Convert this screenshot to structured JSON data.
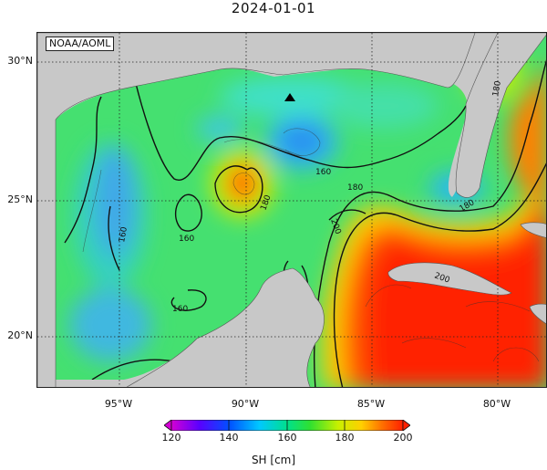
{
  "title": "2024-01-01",
  "credit": "NOAA/AOML",
  "lat_labels": [
    "30°N",
    "25°N",
    "20°N"
  ],
  "lon_labels": [
    "95°W",
    "90°W",
    "85°W",
    "80°W"
  ],
  "contour_labels": [
    "160",
    "160",
    "160",
    "160",
    "180",
    "180",
    "180",
    "200",
    "180",
    "200"
  ],
  "colorbar": {
    "ticks": [
      "120",
      "140",
      "160",
      "180",
      "200"
    ],
    "label": "SH [cm]",
    "colors": [
      "#d400d4",
      "#5a00ff",
      "#0050ff",
      "#00c8ff",
      "#00e08c",
      "#30e030",
      "#c8f000",
      "#ffd000",
      "#ff7000",
      "#ff2000"
    ]
  },
  "marker": "triangle"
}
